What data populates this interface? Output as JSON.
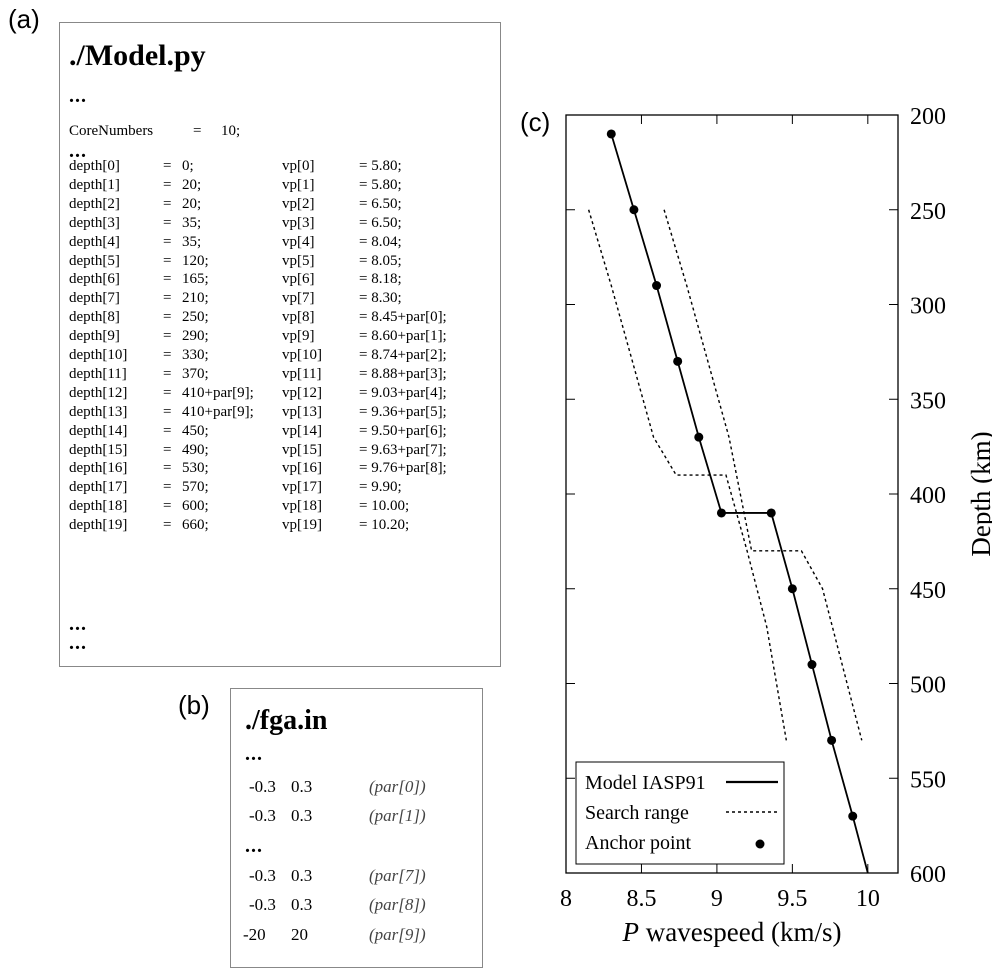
{
  "panel_a": {
    "tag": "(a)",
    "title": "./Model.py",
    "ellipsis": "...",
    "core_label": "CoreNumbers",
    "core_eq": "=",
    "core_value": "10;",
    "depth_rows": [
      {
        "name": "depth[0]",
        "value": "0;"
      },
      {
        "name": "depth[1]",
        "value": "20;"
      },
      {
        "name": "depth[2]",
        "value": "20;"
      },
      {
        "name": "depth[3]",
        "value": "35;"
      },
      {
        "name": "depth[4]",
        "value": "35;"
      },
      {
        "name": "depth[5]",
        "value": "120;"
      },
      {
        "name": "depth[6]",
        "value": "165;"
      },
      {
        "name": "depth[7]",
        "value": "210;"
      },
      {
        "name": "depth[8]",
        "value": "250;"
      },
      {
        "name": "depth[9]",
        "value": "290;"
      },
      {
        "name": "depth[10]",
        "value": "330;"
      },
      {
        "name": "depth[11]",
        "value": "370;"
      },
      {
        "name": "depth[12]",
        "value": "410+par[9];"
      },
      {
        "name": "depth[13]",
        "value": "410+par[9];"
      },
      {
        "name": "depth[14]",
        "value": "450;"
      },
      {
        "name": "depth[15]",
        "value": "490;"
      },
      {
        "name": "depth[16]",
        "value": "530;"
      },
      {
        "name": "depth[17]",
        "value": "570;"
      },
      {
        "name": "depth[18]",
        "value": "600;"
      },
      {
        "name": "depth[19]",
        "value": "660;"
      }
    ],
    "vp_rows": [
      {
        "name": "vp[0]",
        "value": "= 5.80;"
      },
      {
        "name": "vp[1]",
        "value": "= 5.80;"
      },
      {
        "name": "vp[2]",
        "value": "= 6.50;"
      },
      {
        "name": "vp[3]",
        "value": "= 6.50;"
      },
      {
        "name": "vp[4]",
        "value": "= 8.04;"
      },
      {
        "name": "vp[5]",
        "value": "= 8.05;"
      },
      {
        "name": "vp[6]",
        "value": "= 8.18;"
      },
      {
        "name": "vp[7]",
        "value": "= 8.30;"
      },
      {
        "name": "vp[8]",
        "value": "= 8.45+par[0];"
      },
      {
        "name": "vp[9]",
        "value": "= 8.60+par[1];"
      },
      {
        "name": "vp[10]",
        "value": "= 8.74+par[2];"
      },
      {
        "name": "vp[11]",
        "value": "= 8.88+par[3];"
      },
      {
        "name": "vp[12]",
        "value": "= 9.03+par[4];"
      },
      {
        "name": "vp[13]",
        "value": "= 9.36+par[5];"
      },
      {
        "name": "vp[14]",
        "value": "= 9.50+par[6];"
      },
      {
        "name": "vp[15]",
        "value": "= 9.63+par[7];"
      },
      {
        "name": "vp[16]",
        "value": "= 9.76+par[8];"
      },
      {
        "name": "vp[17]",
        "value": "= 9.90;"
      },
      {
        "name": "vp[18]",
        "value": "= 10.00;"
      },
      {
        "name": "vp[19]",
        "value": "= 10.20;"
      }
    ]
  },
  "panel_b": {
    "tag": "(b)",
    "title": "./fga.in",
    "ellipsis": "...",
    "rows": [
      {
        "min": "-0.3",
        "max": "0.3",
        "param": "(par[0])"
      },
      {
        "min": "-0.3",
        "max": "0.3",
        "param": "(par[1])"
      },
      {
        "min": "-0.3",
        "max": "0.3",
        "param": "(par[7])"
      },
      {
        "min": "-0.3",
        "max": "0.3",
        "param": "(par[8])"
      },
      {
        "min": "-20",
        "max": "20",
        "param": "(par[9])"
      }
    ]
  },
  "panel_c": {
    "tag": "(c)"
  },
  "chart_data": {
    "type": "line",
    "xlabel_italic": "P",
    "xlabel_rest": " wavespeed (km/s)",
    "ylabel": "Depth (km)",
    "xlim": [
      8,
      10.2
    ],
    "ylim": [
      200,
      600
    ],
    "y_inverted": true,
    "x_ticks": [
      8,
      8.5,
      9,
      9.5,
      10
    ],
    "x_tick_labels": [
      "8",
      "8.5",
      "9",
      "9.5",
      "10"
    ],
    "y_ticks": [
      200,
      250,
      300,
      350,
      400,
      450,
      500,
      550,
      600
    ],
    "y_tick_labels": [
      "200",
      "250",
      "300",
      "350",
      "400",
      "450",
      "500",
      "550",
      "600"
    ],
    "legend_position": "bottom-left",
    "series": [
      {
        "name": "Model  IASP91",
        "style": "solid",
        "x": [
          8.3,
          8.45,
          8.6,
          8.74,
          8.88,
          9.03,
          9.36,
          9.5,
          9.63,
          9.76,
          9.9,
          10.0
        ],
        "y": [
          210,
          250,
          290,
          330,
          370,
          410,
          410,
          450,
          490,
          530,
          570,
          600
        ]
      },
      {
        "name": "Search range",
        "style": "dashed",
        "x": [
          8.15,
          8.3,
          8.44,
          8.58,
          8.73,
          9.06,
          9.2,
          9.33,
          9.46
        ],
        "y": [
          250,
          290,
          330,
          370,
          390,
          390,
          430,
          470,
          530
        ]
      },
      {
        "name": "",
        "style": "dashed",
        "x": [
          8.65,
          8.8,
          8.94,
          9.08,
          9.23,
          9.56,
          9.7,
          9.83,
          9.96
        ],
        "y": [
          250,
          290,
          330,
          370,
          430,
          430,
          450,
          490,
          530
        ]
      },
      {
        "name": "Anchor point",
        "style": "points",
        "x": [
          8.3,
          8.45,
          8.6,
          8.74,
          8.88,
          9.03,
          9.36,
          9.5,
          9.63,
          9.76,
          9.9
        ],
        "y": [
          210,
          250,
          290,
          330,
          370,
          410,
          410,
          450,
          490,
          530,
          570
        ]
      }
    ]
  }
}
